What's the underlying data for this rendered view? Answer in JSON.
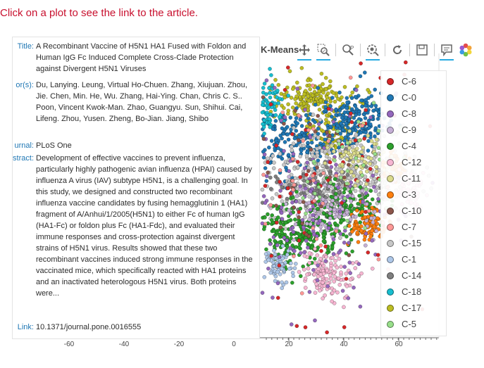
{
  "instruction": "Click on a plot to see the link to the article.",
  "plot": {
    "title": "K-Means",
    "x_ticks": [
      "-60",
      "-40",
      "-20",
      "0",
      "20",
      "40",
      "60"
    ]
  },
  "toolbar": {
    "tools": [
      {
        "name": "pan-tool",
        "icon": "move-arrows-icon",
        "active": true
      },
      {
        "name": "box-zoom-tool",
        "icon": "box-zoom-icon",
        "active": true
      },
      {
        "name": "zoom-out-tool",
        "icon": "zoom-out-icon",
        "active": false
      },
      {
        "name": "wheel-zoom-tool",
        "icon": "wheel-zoom-icon",
        "active": true
      },
      {
        "name": "reset-tool",
        "icon": "reset-icon",
        "active": false
      },
      {
        "name": "save-tool",
        "icon": "save-icon",
        "active": false
      },
      {
        "name": "hover-tool",
        "icon": "hover-tooltip-icon",
        "active": true
      },
      {
        "name": "bokeh-logo",
        "icon": "bokeh-logo-icon",
        "active": false
      }
    ]
  },
  "legend": [
    {
      "label": "C-6",
      "color": "#d62728"
    },
    {
      "label": "C-0",
      "color": "#1f77b4"
    },
    {
      "label": "C-8",
      "color": "#9467bd"
    },
    {
      "label": "C-9",
      "color": "#c5b0d5"
    },
    {
      "label": "C-4",
      "color": "#2ca02c"
    },
    {
      "label": "C-12",
      "color": "#f7b6d2"
    },
    {
      "label": "C-11",
      "color": "#dbdb8d"
    },
    {
      "label": "C-3",
      "color": "#ff7f0e"
    },
    {
      "label": "C-10",
      "color": "#8c564b"
    },
    {
      "label": "C-7",
      "color": "#ff9896"
    },
    {
      "label": "C-15",
      "color": "#c7c7c7"
    },
    {
      "label": "C-1",
      "color": "#aec7e8"
    },
    {
      "label": "C-14",
      "color": "#7f7f7f"
    },
    {
      "label": "C-18",
      "color": "#17becf"
    },
    {
      "label": "C-17",
      "color": "#bcbd22"
    },
    {
      "label": "C-5",
      "color": "#98df8a"
    }
  ],
  "tooltip": {
    "title_label": "Title:",
    "title": "A Recombinant Vaccine of H5N1 HA1 Fused with Foldon and Human IgG Fc Induced Complete Cross-Clade Protection against Divergent H5N1 Viruses",
    "authors_label": "or(s):",
    "authors": "Du, Lanying. Leung, Virtual Ho-Chuen. Zhang, Xiujuan. Zhou, Jie. Chen, Min. He, Wu. Zhang, Hai-Ying. Chan, Chris C. S.. Poon, Vincent Kwok-Man. Zhao, Guangyu. Sun, Shihui. Cai, Lifeng. Zhou, Yusen. Zheng, Bo-Jian. Jiang, Shibo",
    "journal_label": "urnal:",
    "journal": "PLoS One",
    "abstract_label": "stract:",
    "abstract": "Development of effective vaccines to prevent influenza, particularly highly pathogenic avian influenza (HPAI) caused by influenza A virus (IAV) subtype H5N1, is a challenging goal. In this study, we designed and constructed two recombinant influenza vaccine candidates by fusing hemagglutinin 1 (HA1) fragment of A/Anhui/1/2005(H5N1) to either Fc of human IgG (HA1-Fc) or foldon plus Fc (HA1-Fdc), and evaluated their immune responses and cross-protection against divergent strains of H5N1 virus. Results showed that these two recombinant vaccines induced strong immune responses in the vaccinated mice, which specifically reacted with HA1 proteins and an inactivated heterologous H5N1 virus. Both proteins were...",
    "link_label": "Link:",
    "link": "10.1371/journal.pone.0016555"
  }
}
